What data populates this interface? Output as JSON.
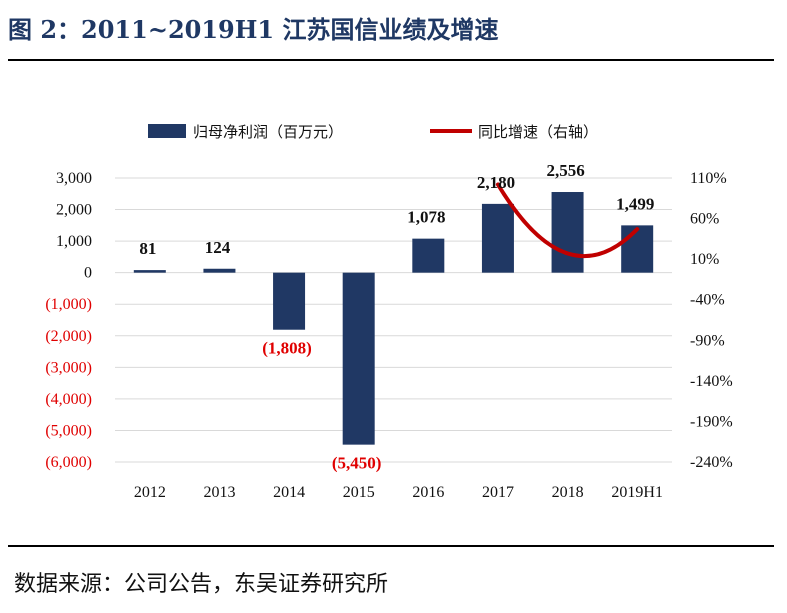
{
  "header": {
    "title": "图 2：2011~2019H1 江苏国信业绩及增速"
  },
  "footer": {
    "source": "数据来源：公司公告，东吴证券研究所"
  },
  "colors": {
    "bar": "#203864",
    "line": "#c00000",
    "negative_text": "#e00000",
    "positive_text": "#111111",
    "grid": "#d9d9d9",
    "title": "#1f3864"
  },
  "chart_data": {
    "type": "bar",
    "categories": [
      "2012",
      "2013",
      "2014",
      "2015",
      "2016",
      "2017",
      "2018",
      "2019H1"
    ],
    "series": [
      {
        "name": "归母净利润（百万元）",
        "type": "bar",
        "axis": "left",
        "values": [
          81,
          124,
          -1808,
          -5450,
          1078,
          2180,
          2556,
          1499
        ],
        "labels": [
          "81",
          "124",
          "(1,808)",
          "(5,450)",
          "1,078",
          "2,180",
          "2,556",
          "1,499"
        ]
      },
      {
        "name": "同比增速（右轴）",
        "type": "line",
        "axis": "right",
        "x": [
          "2017",
          "2018",
          "2019H1"
        ],
        "values": [
          102,
          17,
          47
        ],
        "smooth": true
      }
    ],
    "y_left": {
      "range": [
        -6000,
        3000
      ],
      "ticks": [
        3000,
        2000,
        1000,
        0,
        -1000,
        -2000,
        -3000,
        -4000,
        -5000,
        -6000
      ],
      "tick_labels": [
        "3,000",
        "2,000",
        "1,000",
        "0",
        "(1,000)",
        "(2,000)",
        "(3,000)",
        "(4,000)",
        "(5,000)",
        "(6,000)"
      ]
    },
    "y_right": {
      "range": [
        -240,
        110
      ],
      "ticks": [
        110,
        60,
        10,
        -40,
        -90,
        -140,
        -190,
        -240
      ],
      "tick_labels": [
        "110%",
        "60%",
        "10%",
        "-40%",
        "-90%",
        "-140%",
        "-190%",
        "-240%"
      ]
    },
    "grid": true,
    "legend": "top-center",
    "title": ""
  }
}
